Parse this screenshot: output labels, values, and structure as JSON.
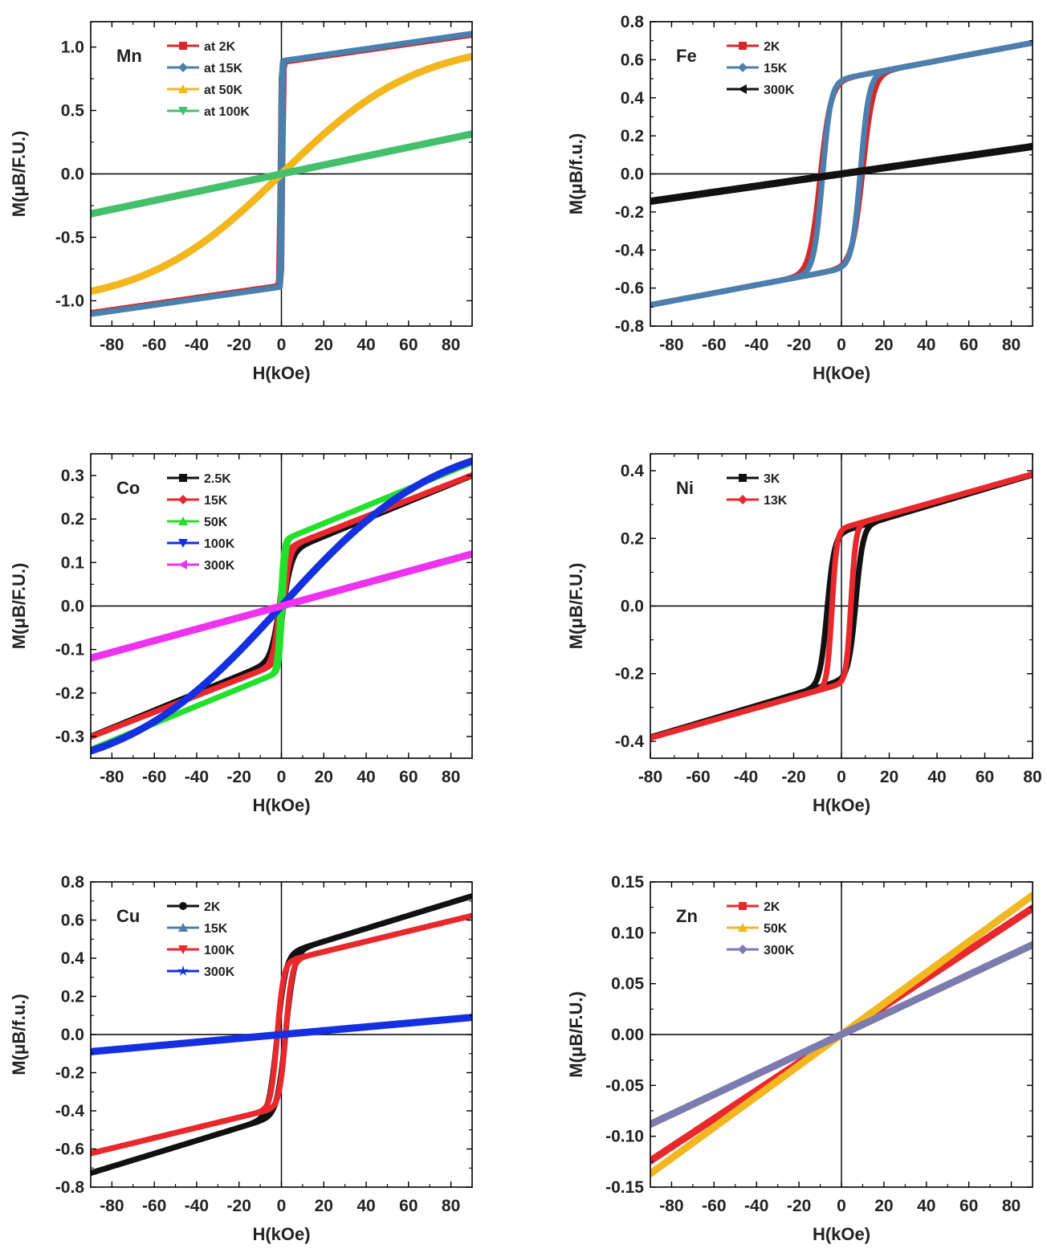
{
  "chart_data": [
    {
      "type": "line",
      "panel_label": "Mn",
      "xlabel": "H(kOe)",
      "ylabel": "M(μB/F.U.)",
      "xlim": [
        -90,
        90
      ],
      "ylim": [
        -1.2,
        1.2
      ],
      "xticks": [
        -80,
        -60,
        -40,
        -20,
        0,
        20,
        40,
        60,
        80
      ],
      "yticks": [
        -1.0,
        -0.5,
        0.0,
        0.5,
        1.0
      ],
      "ytick_labels": [
        "-1.0",
        "-0.5",
        "0.0",
        "0.5",
        "1.0"
      ],
      "legend_position": "top-left",
      "series": [
        {
          "name": "at 2K",
          "color": "#d62728",
          "marker": "square",
          "shape": "ferro",
          "params": {
            "s": 0.88,
            "k": 0.0024,
            "hc": 0.5,
            "w": 0.4
          }
        },
        {
          "name": "at 15K",
          "color": "#4a7fae",
          "marker": "diamond",
          "shape": "ferro",
          "params": {
            "s": 0.89,
            "k": 0.0024,
            "hc": 0.3,
            "w": 0.3
          }
        },
        {
          "name": "at 50K",
          "color": "#f2b61f",
          "marker": "triangle-up",
          "shape": "tanh",
          "params": {
            "a": 1.05,
            "w": 65
          }
        },
        {
          "name": "at 100K",
          "color": "#44c06c",
          "marker": "triangle-down",
          "shape": "linear",
          "params": {
            "k": 0.0035
          }
        }
      ]
    },
    {
      "type": "line",
      "panel_label": "Fe",
      "xlabel": "H(kOe)",
      "ylabel": "M(μB/f.u.)",
      "xlim": [
        -90,
        90
      ],
      "ylim": [
        -0.8,
        0.8
      ],
      "xticks": [
        -80,
        -60,
        -40,
        -20,
        0,
        20,
        40,
        60,
        80
      ],
      "yticks": [
        -0.8,
        -0.6,
        -0.4,
        -0.2,
        0.0,
        0.2,
        0.4,
        0.6,
        0.8
      ],
      "ytick_labels": [
        "-0.8",
        "-0.6",
        "-0.4",
        "-0.2",
        "0.0",
        "0.2",
        "0.4",
        "0.6",
        "0.8"
      ],
      "legend_position": "top-left",
      "series": [
        {
          "name": "2K",
          "color": "#d62728",
          "marker": "square",
          "shape": "hyst",
          "params": {
            "s": 0.5,
            "k": 0.0021,
            "hc": 10,
            "w": 5,
            "d": 0.07
          }
        },
        {
          "name": "15K",
          "color": "#4a7fae",
          "marker": "diamond",
          "shape": "hyst",
          "params": {
            "s": 0.5,
            "k": 0.0021,
            "hc": 9,
            "w": 4,
            "d": 0.07
          }
        },
        {
          "name": "300K",
          "color": "#111111",
          "marker": "triangle-left",
          "shape": "linear",
          "params": {
            "k": 0.0016
          }
        }
      ]
    },
    {
      "type": "line",
      "panel_label": "Co",
      "xlabel": "H(kOe)",
      "ylabel": "M(μB/F.U.)",
      "xlim": [
        -90,
        90
      ],
      "ylim": [
        -0.35,
        0.35
      ],
      "xticks": [
        -80,
        -60,
        -40,
        -20,
        0,
        20,
        40,
        60,
        80
      ],
      "yticks": [
        -0.3,
        -0.2,
        -0.1,
        0.0,
        0.1,
        0.2,
        0.3
      ],
      "ytick_labels": [
        "-0.3",
        "-0.2",
        "-0.1",
        "0.0",
        "0.1",
        "0.2",
        "0.3"
      ],
      "legend_position": "top-left",
      "series": [
        {
          "name": "2.5K",
          "color": "#111111",
          "marker": "square",
          "shape": "ferro",
          "params": {
            "s": 0.12,
            "k": 0.002,
            "hc": 1,
            "w": 4
          }
        },
        {
          "name": "15K",
          "color": "#e8282c",
          "marker": "diamond",
          "shape": "ferro",
          "params": {
            "s": 0.13,
            "k": 0.0019,
            "hc": 1,
            "w": 3
          }
        },
        {
          "name": "50K",
          "color": "#22e02c",
          "marker": "triangle-up",
          "shape": "ferro",
          "params": {
            "s": 0.15,
            "k": 0.002,
            "hc": 0.5,
            "w": 1.5
          }
        },
        {
          "name": "100K",
          "color": "#1430e0",
          "marker": "triangle-down",
          "shape": "tanh",
          "params": {
            "a": 0.4,
            "w": 75
          }
        },
        {
          "name": "300K",
          "color": "#ee33ee",
          "marker": "triangle-left",
          "shape": "linear",
          "params": {
            "k": 0.00133
          }
        }
      ]
    },
    {
      "type": "line",
      "panel_label": "Ni",
      "xlabel": "H(kOe)",
      "ylabel": "M(μB/F.U.)",
      "xlim": [
        -80,
        80
      ],
      "ylim": [
        -0.45,
        0.45
      ],
      "xticks": [
        -80,
        -60,
        -40,
        -20,
        0,
        20,
        40,
        60,
        80
      ],
      "yticks": [
        -0.4,
        -0.2,
        0.0,
        0.2,
        0.4
      ],
      "ytick_labels": [
        "-0.4",
        "-0.2",
        "0.0",
        "0.2",
        "0.4"
      ],
      "legend_position": "top-left",
      "series": [
        {
          "name": "3K",
          "color": "#111111",
          "marker": "square",
          "shape": "hyst",
          "params": {
            "s": 0.22,
            "k": 0.0021,
            "hc": 6,
            "w": 3,
            "d": 0.02
          }
        },
        {
          "name": "13K",
          "color": "#e8282c",
          "marker": "diamond",
          "shape": "hyst",
          "params": {
            "s": 0.23,
            "k": 0.002,
            "hc": 4,
            "w": 2,
            "d": 0.02
          }
        }
      ]
    },
    {
      "type": "line",
      "panel_label": "Cu",
      "xlabel": "H(kOe)",
      "ylabel": "M(μB/f.u.)",
      "xlim": [
        -90,
        90
      ],
      "ylim": [
        -0.8,
        0.8
      ],
      "xticks": [
        -80,
        -60,
        -40,
        -20,
        0,
        20,
        40,
        60,
        80
      ],
      "yticks": [
        -0.8,
        -0.6,
        -0.4,
        -0.2,
        0.0,
        0.2,
        0.4,
        0.6,
        0.8
      ],
      "ytick_labels": [
        "-0.8",
        "-0.6",
        "-0.4",
        "-0.2",
        "0.0",
        "0.2",
        "0.4",
        "0.6",
        "0.8"
      ],
      "legend_position": "top-left",
      "series": [
        {
          "name": "2K",
          "color": "#111111",
          "marker": "circle",
          "shape": "ferro",
          "params": {
            "s": 0.42,
            "k": 0.0034,
            "hc": 2,
            "w": 4
          }
        },
        {
          "name": "15K",
          "color": "#4a7fae",
          "marker": "triangle-up",
          "shape": "none",
          "params": {}
        },
        {
          "name": "100K",
          "color": "#e8282c",
          "marker": "triangle-down",
          "shape": "ferro",
          "params": {
            "s": 0.38,
            "k": 0.0027,
            "hc": 2,
            "w": 3
          }
        },
        {
          "name": "300K",
          "color": "#1430e0",
          "marker": "star",
          "shape": "linear",
          "params": {
            "k": 0.001
          }
        }
      ]
    },
    {
      "type": "line",
      "panel_label": "Zn",
      "xlabel": "H(kOe)",
      "ylabel": "M(μB/F.U.)",
      "xlim": [
        -90,
        90
      ],
      "ylim": [
        -0.15,
        0.15
      ],
      "xticks": [
        -80,
        -60,
        -40,
        -20,
        0,
        20,
        40,
        60,
        80
      ],
      "yticks": [
        -0.15,
        -0.1,
        -0.05,
        0.0,
        0.05,
        0.1,
        0.15
      ],
      "ytick_labels": [
        "-0.15",
        "-0.10",
        "-0.05",
        "0.00",
        "0.05",
        "0.10",
        "0.15"
      ],
      "legend_position": "top-left",
      "series": [
        {
          "name": "2K",
          "color": "#e8282c",
          "marker": "square",
          "shape": "linear",
          "params": {
            "k": 0.00138
          }
        },
        {
          "name": "50K",
          "color": "#f2b61f",
          "marker": "triangle-up",
          "shape": "linear",
          "params": {
            "k": 0.00152
          }
        },
        {
          "name": "300K",
          "color": "#7b7bb0",
          "marker": "diamond",
          "shape": "linear",
          "params": {
            "k": 0.00098
          }
        }
      ]
    }
  ]
}
